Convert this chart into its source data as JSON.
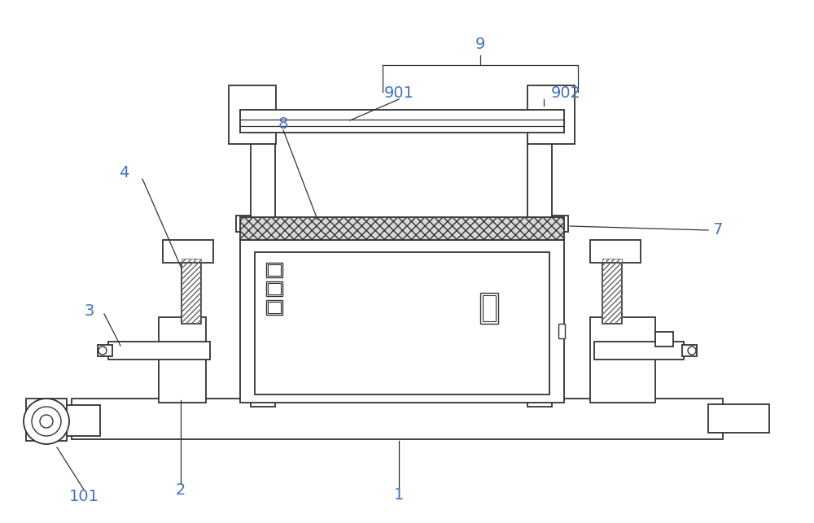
{
  "bg_color": "#ffffff",
  "line_color": "#333333",
  "label_color": "#4472c4",
  "figsize": [
    10.0,
    6.43
  ],
  "dpi": 100
}
